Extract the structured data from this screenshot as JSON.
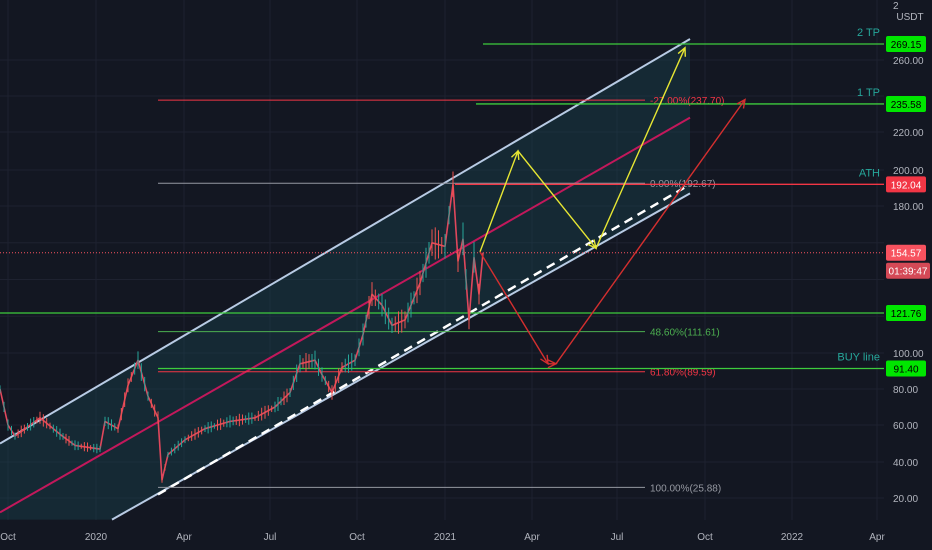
{
  "chart_data": {
    "type": "line",
    "title": "",
    "ylabel": "",
    "xlabel": "",
    "currency": "USDT",
    "top_tick": "2",
    "ylim": [
      8,
      290
    ],
    "y_ticks": [
      "20.00",
      "40.00",
      "60.00",
      "80.00",
      "100.00",
      "180.00",
      "200.00",
      "220.00",
      "260.00"
    ],
    "x_ticks": [
      "Oct",
      "2020",
      "Apr",
      "Jul",
      "Oct",
      "2021",
      "Apr",
      "Jul",
      "Oct",
      "2022",
      "Apr"
    ],
    "horizontal_levels": [
      {
        "name": "2 TP",
        "value": 269.15,
        "label": "269.15",
        "tag_color": "#00e600",
        "line_color": "#3dcc3d"
      },
      {
        "name": "1 TP",
        "value": 235.58,
        "label": "235.58",
        "tag_color": "#00e600",
        "line_color": "#3dcc3d"
      },
      {
        "name": "ATH",
        "value": 192.04,
        "label": "192.04",
        "tag_color": "#f23645",
        "line_color": "#f23645"
      },
      {
        "name": "",
        "value": 121.76,
        "label": "121.76",
        "tag_color": "#00e600",
        "line_color": "#3dcc3d"
      },
      {
        "name": "BUY line",
        "value": 91.4,
        "label": "91.40",
        "tag_color": "#00e600",
        "line_color": "#3dcc3d"
      }
    ],
    "fib_levels": [
      {
        "label": "-27.00%(237.70)",
        "value": 237.7,
        "color": "#f23645"
      },
      {
        "label": "0.00%(192.67)",
        "value": 192.67,
        "color": "#9598a1"
      },
      {
        "label": "48.60%(111.61)",
        "value": 111.61,
        "color": "#4caf50"
      },
      {
        "label": "61.80%(89.59)",
        "value": 89.59,
        "color": "#f23645"
      },
      {
        "label": "100.00%(25.88)",
        "value": 25.88,
        "color": "#9598a1"
      }
    ],
    "current_price": {
      "value": 154.57,
      "label": "154.57",
      "countdown": "01:39:47"
    },
    "price_series": [
      {
        "x": 0,
        "y": 80
      },
      {
        "x": 8,
        "y": 60
      },
      {
        "x": 15,
        "y": 54
      },
      {
        "x": 40,
        "y": 64
      },
      {
        "x": 60,
        "y": 55
      },
      {
        "x": 75,
        "y": 49
      },
      {
        "x": 100,
        "y": 47
      },
      {
        "x": 105,
        "y": 62
      },
      {
        "x": 118,
        "y": 58
      },
      {
        "x": 128,
        "y": 82
      },
      {
        "x": 138,
        "y": 96
      },
      {
        "x": 148,
        "y": 76
      },
      {
        "x": 158,
        "y": 64
      },
      {
        "x": 162,
        "y": 30
      },
      {
        "x": 168,
        "y": 44
      },
      {
        "x": 185,
        "y": 52
      },
      {
        "x": 205,
        "y": 58
      },
      {
        "x": 230,
        "y": 62
      },
      {
        "x": 255,
        "y": 64
      },
      {
        "x": 275,
        "y": 70
      },
      {
        "x": 290,
        "y": 78
      },
      {
        "x": 300,
        "y": 94
      },
      {
        "x": 315,
        "y": 96
      },
      {
        "x": 322,
        "y": 88
      },
      {
        "x": 332,
        "y": 78
      },
      {
        "x": 342,
        "y": 92
      },
      {
        "x": 355,
        "y": 96
      },
      {
        "x": 363,
        "y": 110
      },
      {
        "x": 372,
        "y": 132
      },
      {
        "x": 382,
        "y": 126
      },
      {
        "x": 392,
        "y": 115
      },
      {
        "x": 405,
        "y": 118
      },
      {
        "x": 420,
        "y": 138
      },
      {
        "x": 432,
        "y": 160
      },
      {
        "x": 445,
        "y": 158
      },
      {
        "x": 453,
        "y": 192
      },
      {
        "x": 458,
        "y": 150
      },
      {
        "x": 463,
        "y": 162
      },
      {
        "x": 469,
        "y": 118
      },
      {
        "x": 474,
        "y": 152
      },
      {
        "x": 479,
        "y": 132
      },
      {
        "x": 483,
        "y": 154.57
      }
    ],
    "channel": {
      "upper": [
        {
          "x": 0,
          "y": 50
        },
        {
          "x": 690,
          "y": 272
        }
      ],
      "lower": [
        {
          "x": 112,
          "y": 8
        },
        {
          "x": 690,
          "y": 187
        }
      ],
      "mid": [
        {
          "x": 0,
          "y": 12
        },
        {
          "x": 690,
          "y": 228
        }
      ],
      "dashed": [
        {
          "x": 158,
          "y": 22
        },
        {
          "x": 690,
          "y": 192
        }
      ]
    },
    "projections": {
      "yellow": [
        {
          "x": 480,
          "y": 155
        },
        {
          "x": 518,
          "y": 210
        },
        {
          "x": 596,
          "y": 157
        },
        {
          "x": 685,
          "y": 267
        }
      ],
      "red": [
        {
          "x": 480,
          "y": 155
        },
        {
          "x": 548,
          "y": 94
        },
        {
          "x": 556,
          "y": 94
        },
        {
          "x": 745,
          "y": 238
        }
      ]
    },
    "colors": {
      "background": "#131722",
      "axis_text": "#b2b5be",
      "channel_line": "#b8cbe4",
      "channel_fill": "#1b4a55",
      "mid_line": "#c2185b",
      "dashed_line": "#ffffff",
      "yellow_path": "#e6e633",
      "red_path": "#d32f2f",
      "level_label": "#26a69a",
      "current_tag": "#f7525f"
    }
  }
}
